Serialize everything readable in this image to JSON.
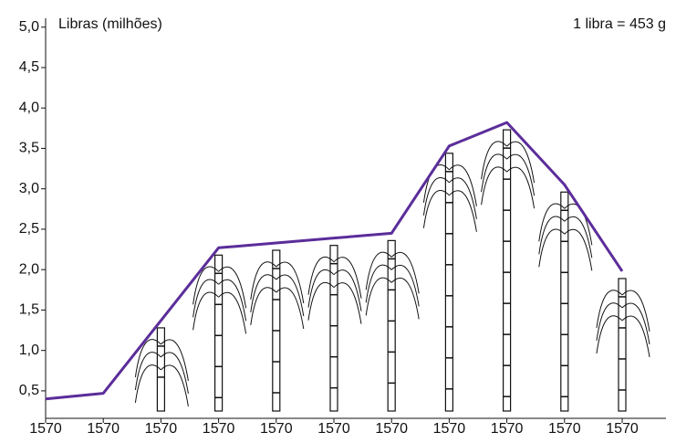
{
  "chart_data": {
    "type": "line",
    "annotations": [
      "Libras (milhões)",
      "1 libra = 453 g"
    ],
    "categories": [
      "1570",
      "1570",
      "1570",
      "1570",
      "1570",
      "1570",
      "1570",
      "1570",
      "1570",
      "1570",
      "1570"
    ],
    "values": [
      0.4,
      0.47,
      1.37,
      2.27,
      2.33,
      2.39,
      2.45,
      3.53,
      3.82,
      3.05,
      1.98
    ],
    "color": "#5b2d9a",
    "ylim": [
      0.16,
      5.11
    ],
    "yticks": [
      {
        "value": 0.5,
        "label": "0,5"
      },
      {
        "value": 1.0,
        "label": "1,0"
      },
      {
        "value": 1.5,
        "label": "1,5"
      },
      {
        "value": 2.0,
        "label": "2,0"
      },
      {
        "value": 2.5,
        "label": "2,5"
      },
      {
        "value": 3.0,
        "label": "3,0"
      },
      {
        "value": 3.5,
        "label": "3,5"
      },
      {
        "value": 4.0,
        "label": "4,0"
      },
      {
        "value": 4.5,
        "label": "4,5"
      },
      {
        "value": 5.0,
        "label": "5,0"
      }
    ]
  }
}
